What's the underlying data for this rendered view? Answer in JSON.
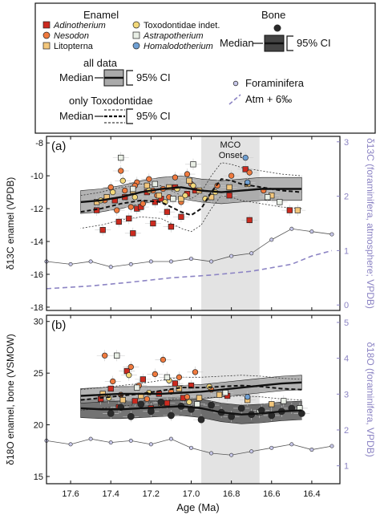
{
  "legend": {
    "enamel_title": "Enamel",
    "bone_title": "Bone",
    "taxa": [
      "Adinotherium",
      "Toxodontidae indet.",
      "Nesodon",
      "Astrapotherium",
      "Litopterna",
      "Homalodotherium"
    ],
    "taxa_italic": [
      true,
      false,
      true,
      true,
      false,
      true
    ],
    "all_data": "all data",
    "only_toxo": "only Toxodontidae",
    "median": "Median",
    "ci": "95% CI",
    "foraminifera": "Foraminifera",
    "atm": "Atm + 6‰"
  },
  "colors": {
    "Adinotherium": "#cc2a1f",
    "Toxodontidae indet.": "#f3d97a",
    "Nesodon": "#f07a3e",
    "Astrapotherium": "#e9efe6",
    "Litopterna": "#f3c77c",
    "Homalodotherium": "#6fa0d3",
    "Bone": "#2a2a2a",
    "foram_fill": "#c8c8ea",
    "atm_line": "#8c84c4",
    "mco_band": "#e3e3e3"
  },
  "panels": {
    "a": {
      "label": "(a)",
      "ylabel": "δ13C enamel (VPDB)",
      "ylabel_right": "δ13C (foraminifera, atmosphere; VPDB)",
      "mco_label_1": "MCO",
      "mco_label_2": "Onset",
      "yticks": [
        "-8",
        "-10",
        "-12",
        "-14",
        "-16",
        "-18"
      ],
      "yticks_right": [
        "3",
        "2",
        "1",
        "0"
      ]
    },
    "b": {
      "label": "(b)",
      "ylabel": "δ18O enamel, bone (VSMOW)",
      "ylabel_right": "δ18O (foraminifera, VPDB)",
      "yticks": [
        "30",
        "25",
        "20",
        "15"
      ],
      "yticks_right": [
        "5",
        "4",
        "3",
        "2",
        "1"
      ]
    }
  },
  "xaxis": {
    "label": "Age (Ma)",
    "ticks": [
      "17.6",
      "17.4",
      "17.2",
      "17.0",
      "16.8",
      "16.6",
      "16.4"
    ]
  },
  "chart_data": [
    {
      "type": "scatter",
      "panel": "a",
      "xlabel": "Age (Ma)",
      "ylabel": "δ13C enamel (VPDB)",
      "y2label": "δ13C (foraminifera, atmosphere; VPDB)",
      "xlim": [
        17.72,
        16.26
      ],
      "ylim": [
        -18.2,
        -7.6
      ],
      "y2lim": [
        -0.1,
        3.1
      ],
      "mco_onset": [
        16.95,
        16.66
      ],
      "series": [
        {
          "name": "Adinotherium",
          "x": [
            17.47,
            17.44,
            17.38,
            17.36,
            17.33,
            17.31,
            17.29,
            17.27,
            17.22,
            17.19,
            17.15,
            17.12,
            17.08,
            17.05,
            17.02,
            16.81,
            16.73,
            16.71,
            16.51,
            17.25,
            17.18,
            17.1,
            16.98
          ],
          "y": [
            -12.1,
            -13.3,
            -11.5,
            -12.8,
            -11.3,
            -12.6,
            -13.5,
            -12.0,
            -11.0,
            -12.9,
            -11.4,
            -12.2,
            -10.7,
            -12.5,
            -11.1,
            -11.2,
            -9.6,
            -12.7,
            -12.1,
            -11.9,
            -11.6,
            -13.1,
            -10.9
          ]
        },
        {
          "name": "Nesodon",
          "x": [
            17.43,
            17.4,
            17.37,
            17.33,
            17.3,
            17.27,
            17.24,
            17.21,
            17.17,
            17.14,
            17.11,
            17.08,
            17.05,
            17.02,
            17.0,
            16.87,
            16.8,
            16.71,
            16.64,
            17.35,
            17.28,
            17.19
          ],
          "y": [
            -11.5,
            -10.7,
            -12.1,
            -10.9,
            -11.9,
            -10.4,
            -11.7,
            -10.2,
            -11.2,
            -10.8,
            -11.3,
            -10.1,
            -11.6,
            -9.9,
            -10.5,
            -10.6,
            -10.0,
            -9.8,
            -10.9,
            -9.7,
            -10.6,
            -10.9
          ]
        },
        {
          "name": "Litopterna",
          "x": [
            17.47,
            17.42,
            17.29,
            17.22,
            17.16,
            17.11,
            17.05,
            17.01,
            16.96,
            16.9,
            16.81,
            16.72,
            16.6,
            16.47
          ],
          "y": [
            -11.6,
            -11.3,
            -10.9,
            -10.6,
            -11.2,
            -10.7,
            -11.4,
            -10.3,
            -10.9,
            -11.3,
            -10.7,
            -10.5,
            -11.2,
            -12.1
          ]
        },
        {
          "name": "Toxodontidae indet.",
          "x": [
            17.45,
            17.39,
            17.34,
            17.28,
            17.21,
            17.13,
            17.07,
            17.03,
            16.99,
            16.93,
            16.88
          ],
          "y": [
            -11.5,
            -11.0,
            -10.3,
            -11.3,
            -10.9,
            -11.6,
            -10.8,
            -11.2,
            -10.6,
            -11.4,
            -11.0
          ]
        },
        {
          "name": "Astrapotherium",
          "x": [
            17.35,
            17.29,
            17.18,
            17.09,
            16.99,
            16.62,
            16.56
          ],
          "y": [
            -8.9,
            -10.8,
            -10.5,
            -11.4,
            -9.3,
            -11.3,
            -11.6
          ]
        },
        {
          "name": "Homalodotherium",
          "x": [
            16.73,
            16.72
          ],
          "y": [
            -8.9,
            -10.4
          ]
        }
      ],
      "median_all": {
        "x": [
          17.55,
          17.45,
          17.35,
          17.25,
          17.15,
          17.05,
          16.95,
          16.85,
          16.75,
          16.65,
          16.55,
          16.45
        ],
        "y": [
          -11.6,
          -11.5,
          -11.3,
          -11.0,
          -10.8,
          -10.7,
          -10.9,
          -11.0,
          -10.9,
          -10.8,
          -10.8,
          -10.8
        ]
      },
      "median_toxodontidae": {
        "x": [
          17.55,
          17.45,
          17.35,
          17.25,
          17.15,
          17.05,
          17.0,
          16.95,
          16.9,
          16.85,
          16.8,
          16.75,
          16.65,
          16.55,
          16.45
        ],
        "y": [
          -12.2,
          -12.0,
          -11.7,
          -11.5,
          -11.6,
          -12.2,
          -12.4,
          -12.0,
          -11.0,
          -10.2,
          -10.3,
          -10.5,
          -10.7,
          -10.9,
          -11.0
        ]
      },
      "foraminifera": {
        "x": [
          17.72,
          17.6,
          17.5,
          17.4,
          17.3,
          17.2,
          17.1,
          17.0,
          16.9,
          16.8,
          16.7,
          16.6,
          16.5,
          16.4,
          16.3
        ],
        "y": [
          0.8,
          0.75,
          0.8,
          0.7,
          0.75,
          0.8,
          0.8,
          0.85,
          0.8,
          0.9,
          0.95,
          1.2,
          1.4,
          1.35,
          1.3
        ]
      },
      "atm_plus_6": {
        "x": [
          17.72,
          17.5,
          17.3,
          17.1,
          16.9,
          16.7,
          16.5,
          16.4,
          16.3
        ],
        "y": [
          0.3,
          0.35,
          0.42,
          0.5,
          0.55,
          0.62,
          0.75,
          0.9,
          1.0
        ]
      }
    },
    {
      "type": "scatter",
      "panel": "b",
      "xlabel": "Age (Ma)",
      "ylabel": "δ18O enamel, bone (VSMOW)",
      "y2label": "δ18O (foraminifera, VPDB)",
      "xlim": [
        17.72,
        16.26
      ],
      "ylim": [
        14.3,
        30.6
      ],
      "y2lim": [
        0.5,
        5.2
      ],
      "mco_onset": [
        16.95,
        16.66
      ],
      "series": [
        {
          "name": "Adinotherium",
          "x": [
            17.45,
            17.4,
            17.36,
            17.32,
            17.28,
            17.24,
            17.2,
            17.16,
            17.12,
            17.08,
            17.04,
            17.0,
            16.82
          ],
          "y": [
            22.5,
            23.5,
            21.7,
            25.2,
            22.3,
            24.4,
            21.6,
            23.0,
            22.1,
            24.0,
            22.6,
            23.8,
            22.8
          ]
        },
        {
          "name": "Nesodon",
          "x": [
            17.43,
            17.39,
            17.35,
            17.3,
            17.26,
            17.22,
            17.18,
            17.14,
            17.1,
            17.06,
            17.02,
            16.98,
            16.9
          ],
          "y": [
            26.7,
            24.2,
            22.9,
            25.6,
            23.8,
            22.5,
            24.9,
            26.3,
            23.2,
            24.6,
            22.7,
            25.1,
            23.4
          ]
        },
        {
          "name": "Litopterna",
          "x": [
            17.44,
            17.34,
            17.25,
            17.15,
            17.06,
            16.96,
            16.86,
            16.72,
            16.6
          ],
          "y": [
            23.0,
            22.4,
            22.8,
            22.1,
            23.5,
            22.6,
            22.9,
            22.4,
            22.0
          ]
        },
        {
          "name": "Toxodontidae indet.",
          "x": [
            17.41,
            17.31,
            17.21,
            17.11,
            17.01,
            16.91
          ],
          "y": [
            22.6,
            24.8,
            23.1,
            24.3,
            22.2,
            23.7
          ]
        },
        {
          "name": "Astrapotherium",
          "x": [
            17.37,
            17.27,
            17.12,
            16.97,
            16.83,
            16.66,
            16.54,
            16.46
          ],
          "y": [
            26.7,
            23.6,
            24.6,
            22.0,
            23.1,
            21.2,
            22.3,
            21.6
          ]
        },
        {
          "name": "Homalodotherium",
          "x": [
            16.72
          ],
          "y": [
            22.7
          ]
        },
        {
          "name": "Bone",
          "x": [
            17.4,
            17.35,
            17.3,
            17.25,
            17.2,
            17.15,
            17.1,
            17.05,
            17.0,
            16.95,
            16.9,
            16.85,
            16.8,
            16.75,
            16.7,
            16.65,
            16.6,
            16.55,
            16.5,
            16.45
          ],
          "y": [
            21.1,
            21.7,
            20.8,
            22.0,
            21.3,
            22.2,
            20.9,
            21.8,
            21.5,
            20.5,
            21.9,
            21.2,
            20.8,
            21.6,
            21.0,
            21.4,
            20.9,
            21.3,
            21.6,
            21.1
          ]
        }
      ],
      "median_all": {
        "x": [
          17.55,
          17.45,
          17.35,
          17.25,
          17.15,
          17.05,
          16.95,
          16.85,
          16.75,
          16.65,
          16.55,
          16.45
        ],
        "y": [
          22.8,
          22.9,
          23.0,
          23.0,
          23.0,
          23.1,
          23.2,
          23.4,
          23.6,
          23.8,
          24.0,
          24.1
        ]
      },
      "median_toxodontidae": {
        "x": [
          17.55,
          17.45,
          17.35,
          17.25,
          17.15,
          17.05,
          16.95,
          16.85,
          16.75,
          16.65,
          16.55,
          16.45
        ],
        "y": [
          22.4,
          22.6,
          22.8,
          23.0,
          23.3,
          23.6,
          23.6,
          23.7,
          23.8,
          23.7,
          23.5,
          23.4
        ]
      },
      "median_bone": {
        "x": [
          17.55,
          17.45,
          17.35,
          17.25,
          17.15,
          17.05,
          16.95,
          16.85,
          16.75,
          16.65,
          16.55,
          16.45
        ],
        "y": [
          21.6,
          21.5,
          21.5,
          21.6,
          21.7,
          21.8,
          21.6,
          21.2,
          21.0,
          21.1,
          21.3,
          21.4
        ]
      },
      "foraminifera": {
        "x": [
          17.72,
          17.6,
          17.5,
          17.4,
          17.3,
          17.2,
          17.1,
          17.0,
          16.9,
          16.8,
          16.7,
          16.6,
          16.5,
          16.4,
          16.3
        ],
        "y": [
          1.7,
          1.6,
          1.75,
          1.65,
          1.7,
          1.6,
          1.75,
          1.5,
          1.35,
          1.3,
          1.4,
          1.5,
          1.6,
          1.45,
          1.55
        ]
      }
    }
  ]
}
